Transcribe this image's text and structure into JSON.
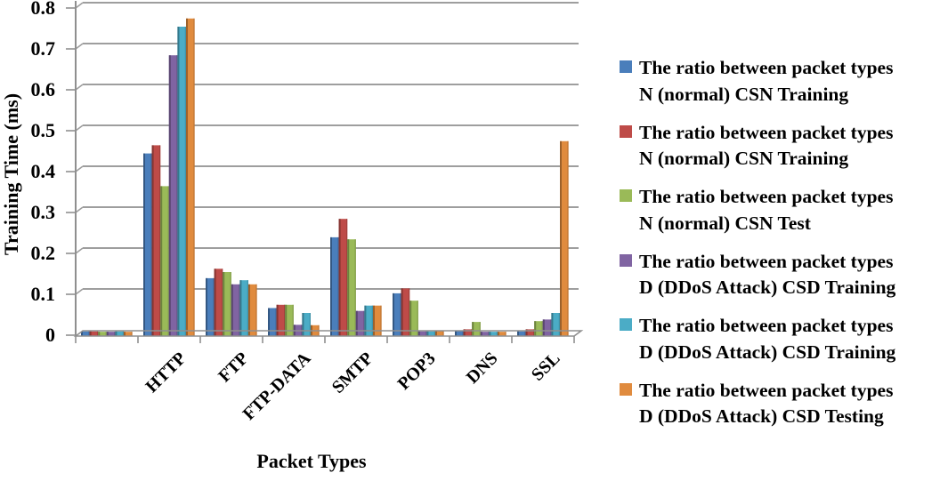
{
  "chart_data": {
    "type": "bar",
    "title": "",
    "xlabel": "Packet Types",
    "ylabel": "Training Time (ms)",
    "ylim": [
      0,
      0.8
    ],
    "y_ticks": [
      "0",
      "0.1",
      "0.2",
      "0.3",
      "0.4",
      "0.5",
      "0.6",
      "0.7",
      "0.8"
    ],
    "grid": true,
    "legend_position": "right",
    "grid_color": "#9E9E9E",
    "axis_color": "#8F8F8F",
    "categories": [
      "",
      "HTTP",
      "FTP",
      "FTP-DATA",
      "SMTP",
      "POP3",
      "DNS",
      "SSL"
    ],
    "series": [
      {
        "name": "The ratio between packet types N (normal) CSN Training",
        "legend_lines": [
          "The ratio between packet types",
          "N (normal) CSN Training"
        ],
        "color": "#4A7EBB",
        "values": [
          0.005,
          0.44,
          0.135,
          0.062,
          0.235,
          0.098,
          0.007,
          0.005
        ]
      },
      {
        "name": "The ratio between packet types N (normal) CSN Training",
        "legend_lines": [
          "The ratio between packet types",
          "N (normal) CSN Training"
        ],
        "color": "#BE4B48",
        "values": [
          0.005,
          0.46,
          0.158,
          0.07,
          0.28,
          0.11,
          0.01,
          0.01
        ]
      },
      {
        "name": "The ratio between packet types N (normal) CSN Test",
        "legend_lines": [
          "The ratio between packet types",
          "N (normal) CSN Test"
        ],
        "color": "#9ABA58",
        "values": [
          0.004,
          0.36,
          0.15,
          0.07,
          0.23,
          0.08,
          0.028,
          0.03
        ]
      },
      {
        "name": "The ratio between packet types D (DDoS Attack) CSD Training",
        "legend_lines": [
          "The ratio between packet types",
          "D (DDoS Attack) CSD Training"
        ],
        "color": "#8064A2",
        "values": [
          0.004,
          0.68,
          0.12,
          0.021,
          0.055,
          0.005,
          0.004,
          0.034
        ]
      },
      {
        "name": "The ratio between packet types D (DDoS Attack) CSD Training",
        "legend_lines": [
          "The ratio between packet types",
          "D (DDoS Attack) CSD Training"
        ],
        "color": "#4BACC6",
        "values": [
          0.005,
          0.75,
          0.13,
          0.05,
          0.068,
          0.005,
          0.004,
          0.05
        ]
      },
      {
        "name": "The ratio between packet types D (DDoS Attack) CSD Testing",
        "legend_lines": [
          "The ratio between packet types",
          "D (DDoS Attack) CSD Testing"
        ],
        "color": "#E08B3E",
        "values": [
          0.004,
          0.77,
          0.12,
          0.02,
          0.068,
          0.006,
          0.004,
          0.47
        ]
      }
    ]
  }
}
